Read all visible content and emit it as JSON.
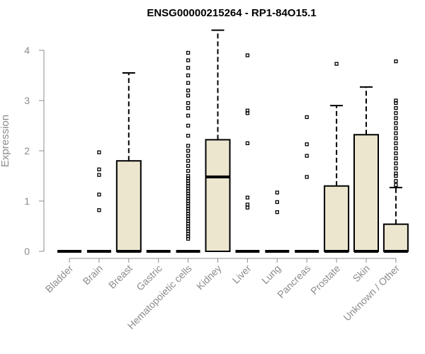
{
  "chart_data": {
    "type": "boxplot",
    "title": "ENSG00000215264 - RP1-84O15.1",
    "ylabel": "Expression",
    "xlabel": "",
    "ylim": [
      0,
      4.4
    ],
    "yticks": [
      "0",
      "1",
      "2",
      "3",
      "4"
    ],
    "grid": false,
    "box_fill": "#ece6cf",
    "categories": [
      "Bladder",
      "Brain",
      "Breast",
      "Gastric",
      "Hematopoietic cells",
      "Kidney",
      "Liver",
      "Lung",
      "Pancreas",
      "Prostate",
      "Skin",
      "Unknown / Other"
    ],
    "series": [
      {
        "category": "Bladder",
        "whislo": 0,
        "q1": 0,
        "med": 0,
        "q3": 0,
        "whishi": 0,
        "fliers": []
      },
      {
        "category": "Brain",
        "whislo": 0,
        "q1": 0,
        "med": 0,
        "q3": 0,
        "whishi": 0,
        "fliers": [
          0.82,
          1.13,
          1.52,
          1.63,
          1.97
        ]
      },
      {
        "category": "Breast",
        "whislo": 0,
        "q1": 0,
        "med": 0,
        "q3": 1.8,
        "whishi": 3.55,
        "fliers": []
      },
      {
        "category": "Gastric",
        "whislo": 0,
        "q1": 0,
        "med": 0,
        "q3": 0,
        "whishi": 0,
        "fliers": []
      },
      {
        "category": "Hematopoietic cells",
        "whislo": 0,
        "q1": 0,
        "med": 0,
        "q3": 0,
        "whishi": 0,
        "fliers": [
          0.25,
          0.3,
          0.35,
          0.4,
          0.45,
          0.5,
          0.55,
          0.6,
          0.65,
          0.7,
          0.75,
          0.8,
          0.85,
          0.9,
          0.95,
          1.0,
          1.05,
          1.1,
          1.15,
          1.2,
          1.25,
          1.3,
          1.35,
          1.4,
          1.45,
          1.5,
          1.6,
          1.7,
          1.8,
          1.9,
          2.0,
          2.1,
          2.3,
          2.5,
          2.7,
          2.85,
          2.95,
          3.1,
          3.2,
          3.35,
          3.5,
          3.65,
          3.8,
          3.95
        ]
      },
      {
        "category": "Kidney",
        "whislo": 0,
        "q1": 0,
        "med": 1.48,
        "q3": 2.22,
        "whishi": 4.4,
        "fliers": []
      },
      {
        "category": "Liver",
        "whislo": 0,
        "q1": 0,
        "med": 0,
        "q3": 0,
        "whishi": 0,
        "fliers": [
          0.87,
          0.93,
          1.07,
          2.15,
          2.75,
          2.8,
          3.9
        ]
      },
      {
        "category": "Lung",
        "whislo": 0,
        "q1": 0,
        "med": 0,
        "q3": 0,
        "whishi": 0,
        "fliers": [
          0.78,
          0.98,
          1.17
        ]
      },
      {
        "category": "Pancreas",
        "whislo": 0,
        "q1": 0,
        "med": 0,
        "q3": 0,
        "whishi": 0,
        "fliers": [
          1.48,
          1.9,
          2.13,
          2.67
        ]
      },
      {
        "category": "Prostate",
        "whislo": 0,
        "q1": 0,
        "med": 0,
        "q3": 1.3,
        "whishi": 2.9,
        "fliers": [
          3.73
        ]
      },
      {
        "category": "Skin",
        "whislo": 0,
        "q1": 0,
        "med": 0,
        "q3": 2.32,
        "whishi": 3.27,
        "fliers": []
      },
      {
        "category": "Unknown / Other",
        "whislo": 0,
        "q1": 0,
        "med": 0,
        "q3": 0.54,
        "whishi": 1.27,
        "fliers": [
          1.32,
          1.4,
          1.5,
          1.55,
          1.65,
          1.75,
          1.85,
          1.95,
          2.05,
          2.15,
          2.25,
          2.35,
          2.45,
          2.55,
          2.65,
          2.75,
          2.85,
          2.95,
          3.0,
          3.78
        ]
      }
    ]
  }
}
